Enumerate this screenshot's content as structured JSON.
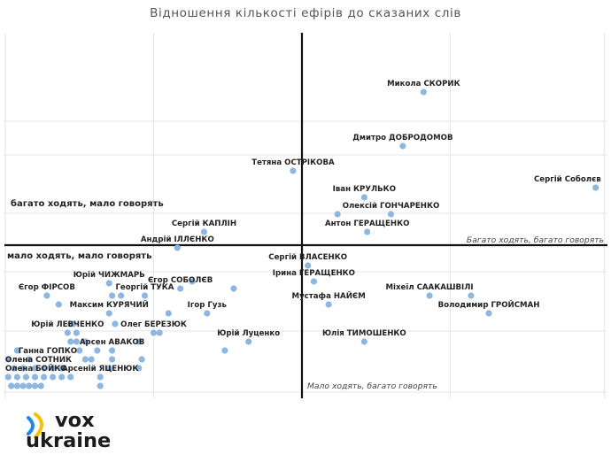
{
  "chart_data": {
    "type": "scatter",
    "title": "Відношення кількості ефірів до сказаних слів",
    "axes": {
      "grid": true,
      "tick_labels": false
    },
    "quadrants": {
      "top_left": "багато ходять, мало говорять",
      "top_right": "Багато ходять, багато говорять",
      "bottom_left": "мало ходять, мало говорять",
      "bottom_right": "Мало ходять, багато говорять"
    },
    "colors": {
      "point": "#8db7e0",
      "axis": "#111111",
      "grid": "#e6e6e6"
    },
    "points": [
      {
        "x": 0.41,
        "y": 1.73,
        "name": "Микола СКОРИК"
      },
      {
        "x": 0.34,
        "y": 1.12,
        "name": "Дмитро ДОБРОДОМОВ"
      },
      {
        "x": -0.03,
        "y": 0.84,
        "name": "Тетяна ОСТРІКОВА"
      },
      {
        "x": 0.99,
        "y": 0.65,
        "name": "Сергій Соболєв"
      },
      {
        "x": 0.21,
        "y": 0.54,
        "name": "Іван КРУЛЬКО"
      },
      {
        "x": 0.12,
        "y": 0.35,
        "name": ""
      },
      {
        "x": 0.3,
        "y": 0.35,
        "name": "Олексій ГОНЧАРЕНКО"
      },
      {
        "x": -0.33,
        "y": 0.15,
        "name": "Сергій КАПЛІН"
      },
      {
        "x": 0.22,
        "y": 0.15,
        "name": "Антон ГЕРАЩЕНКО"
      },
      {
        "x": -0.42,
        "y": -0.03,
        "name": "Андрій ІЛЛЄНКО"
      },
      {
        "x": 0.02,
        "y": -0.23,
        "name": "Сергій ВЛАСЕНКО"
      },
      {
        "x": 0.04,
        "y": -0.41,
        "name": "Ірина ГЕРАЩЕНКО"
      },
      {
        "x": -0.37,
        "y": -0.41,
        "name": ""
      },
      {
        "x": -0.41,
        "y": -0.49,
        "name": "Єгор СОБОЛЄВ"
      },
      {
        "x": -0.23,
        "y": -0.49,
        "name": ""
      },
      {
        "x": -0.65,
        "y": -0.43,
        "name": "Юрій ЧИЖМАРЬ"
      },
      {
        "x": -0.53,
        "y": -0.57,
        "name": "Георгій ТУКА"
      },
      {
        "x": -0.64,
        "y": -0.57,
        "name": ""
      },
      {
        "x": -0.61,
        "y": -0.57,
        "name": ""
      },
      {
        "x": -0.86,
        "y": -0.57,
        "name": "Єгор ФІРСОВ"
      },
      {
        "x": -0.82,
        "y": -0.67,
        "name": ""
      },
      {
        "x": 0.09,
        "y": -0.67,
        "name": "Мустафа НАЙЄМ"
      },
      {
        "x": 0.43,
        "y": -0.57,
        "name": "Міхеїл СААКАШВІЛІ"
      },
      {
        "x": 0.57,
        "y": -0.57,
        "name": ""
      },
      {
        "x": 0.63,
        "y": -0.77,
        "name": "Володимир ГРОЙСМАН"
      },
      {
        "x": -0.65,
        "y": -0.77,
        "name": "Максим КУРЯЧИЙ"
      },
      {
        "x": -0.45,
        "y": -0.77,
        "name": ""
      },
      {
        "x": -0.32,
        "y": -0.77,
        "name": "Ігор Гузь"
      },
      {
        "x": -0.63,
        "y": -0.89,
        "name": ""
      },
      {
        "x": -0.78,
        "y": -0.89,
        "name": ""
      },
      {
        "x": -0.77,
        "y": -0.89,
        "name": ""
      },
      {
        "x": -0.5,
        "y": -0.99,
        "name": "Олег БЕРЕЗЮК"
      },
      {
        "x": -0.48,
        "y": -0.99,
        "name": ""
      },
      {
        "x": -0.79,
        "y": -0.99,
        "name": "Юрій ЛЕВЧЕНКО"
      },
      {
        "x": -0.76,
        "y": -0.99,
        "name": ""
      },
      {
        "x": -0.18,
        "y": -1.09,
        "name": "Юрій Луценко"
      },
      {
        "x": 0.21,
        "y": -1.09,
        "name": "Юлія ТИМОШЕНКО"
      },
      {
        "x": -0.55,
        "y": -1.09,
        "name": ""
      },
      {
        "x": -0.78,
        "y": -1.09,
        "name": ""
      },
      {
        "x": -0.76,
        "y": -1.09,
        "name": ""
      },
      {
        "x": -0.73,
        "y": -1.09,
        "name": ""
      },
      {
        "x": -0.26,
        "y": -1.19,
        "name": ""
      },
      {
        "x": -0.64,
        "y": -1.19,
        "name": "Арсен АВАКОВ"
      },
      {
        "x": -0.69,
        "y": -1.19,
        "name": ""
      },
      {
        "x": -0.75,
        "y": -1.19,
        "name": ""
      },
      {
        "x": -0.96,
        "y": -1.19,
        "name": ""
      },
      {
        "x": -0.92,
        "y": -1.29,
        "name": "Ганна ГОПКО"
      },
      {
        "x": -0.64,
        "y": -1.29,
        "name": ""
      },
      {
        "x": -0.54,
        "y": -1.29,
        "name": ""
      },
      {
        "x": -0.71,
        "y": -1.29,
        "name": ""
      },
      {
        "x": -0.73,
        "y": -1.29,
        "name": ""
      },
      {
        "x": -0.99,
        "y": -1.29,
        "name": ""
      },
      {
        "x": -0.97,
        "y": -1.39,
        "name": "Олена СОТНИК"
      },
      {
        "x": -0.94,
        "y": -1.39,
        "name": ""
      },
      {
        "x": -0.9,
        "y": -1.39,
        "name": ""
      },
      {
        "x": -0.87,
        "y": -1.39,
        "name": ""
      },
      {
        "x": -0.84,
        "y": -1.39,
        "name": ""
      },
      {
        "x": -0.81,
        "y": -1.39,
        "name": ""
      },
      {
        "x": -0.65,
        "y": -1.39,
        "name": ""
      },
      {
        "x": -0.55,
        "y": -1.39,
        "name": ""
      },
      {
        "x": -0.99,
        "y": -1.49,
        "name": "Олена БОЙКО"
      },
      {
        "x": -0.96,
        "y": -1.49,
        "name": ""
      },
      {
        "x": -0.93,
        "y": -1.49,
        "name": ""
      },
      {
        "x": -0.9,
        "y": -1.49,
        "name": ""
      },
      {
        "x": -0.87,
        "y": -1.49,
        "name": ""
      },
      {
        "x": -0.84,
        "y": -1.49,
        "name": ""
      },
      {
        "x": -0.81,
        "y": -1.49,
        "name": ""
      },
      {
        "x": -0.78,
        "y": -1.49,
        "name": ""
      },
      {
        "x": -0.68,
        "y": -1.49,
        "name": "Арсеній ЯЦЕНЮК"
      },
      {
        "x": -0.98,
        "y": -1.59,
        "name": ""
      },
      {
        "x": -0.96,
        "y": -1.59,
        "name": ""
      },
      {
        "x": -0.94,
        "y": -1.59,
        "name": ""
      },
      {
        "x": -0.92,
        "y": -1.59,
        "name": ""
      },
      {
        "x": -0.9,
        "y": -1.59,
        "name": ""
      },
      {
        "x": -0.88,
        "y": -1.59,
        "name": ""
      },
      {
        "x": -0.68,
        "y": -1.59,
        "name": ""
      }
    ]
  },
  "logo": {
    "line1": "vox",
    "line2": "ukraine"
  }
}
